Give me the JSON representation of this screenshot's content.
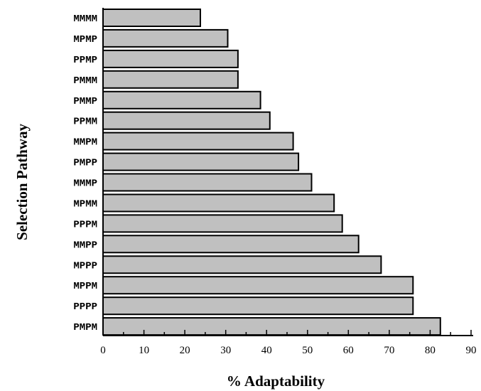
{
  "chart_data": {
    "type": "bar",
    "orientation": "horizontal",
    "categories": [
      "MMMM",
      "MPMP",
      "PPMP",
      "PMMM",
      "PMMP",
      "PPMM",
      "MMPM",
      "PMPP",
      "MMMP",
      "MPMM",
      "PPPM",
      "MMPP",
      "MPPP",
      "MPPM",
      "PPPP",
      "PMPM"
    ],
    "values": [
      23.8,
      30.5,
      33.0,
      33.0,
      38.5,
      40.8,
      46.5,
      47.8,
      51.0,
      56.5,
      58.5,
      62.5,
      68.0,
      75.8,
      75.8,
      82.5
    ],
    "xlabel": "% Adaptability",
    "ylabel": "Selection Pathway",
    "xlim": [
      0,
      90
    ],
    "xticks": [
      "0",
      "10",
      "20",
      "30",
      "40",
      "50",
      "60",
      "70",
      "80",
      "90"
    ],
    "grid": false,
    "bar_color": "#c0c0c0"
  }
}
